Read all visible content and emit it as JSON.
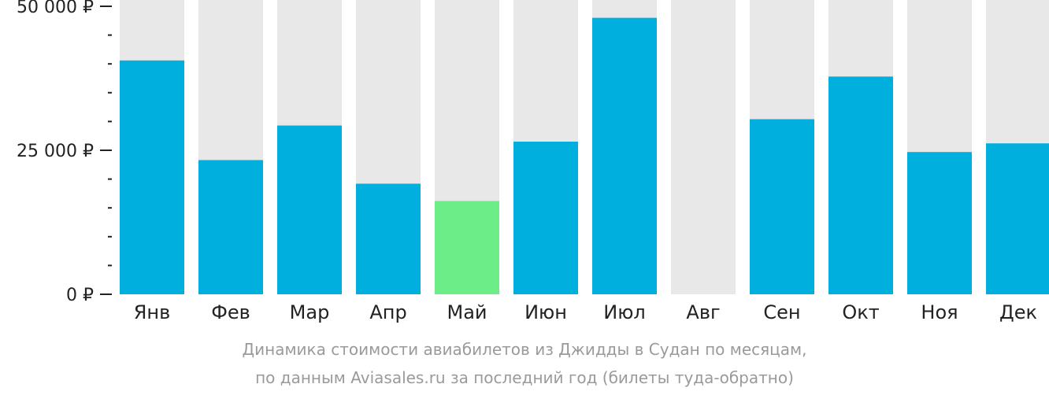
{
  "chart_data": {
    "type": "bar",
    "categories": [
      "Янв",
      "Фев",
      "Мар",
      "Апр",
      "Май",
      "Июн",
      "Июл",
      "Авг",
      "Сен",
      "Окт",
      "Ноя",
      "Дек"
    ],
    "values": [
      40600,
      23300,
      29300,
      19200,
      16200,
      26500,
      48000,
      null,
      30400,
      37800,
      24700,
      26200
    ],
    "ylim": [
      0,
      50000
    ],
    "yticks": [
      {
        "value": 0,
        "label": "0 ₽"
      },
      {
        "value": 25000,
        "label": "25 000 ₽"
      },
      {
        "value": 50000,
        "label": "50 000 ₽"
      }
    ],
    "minor_tick_step": 5000,
    "highlight_index": 4,
    "colors": {
      "bar": "#00afdd",
      "highlight": "#6ced87",
      "background_column": "#e8e8e8",
      "axis": "#222222"
    },
    "caption_lines": [
      "Динамика стоимости авиабилетов из Джидды в Судан по месяцам,",
      "по данным Aviasales.ru за последний год (билеты туда-обратно)"
    ]
  }
}
